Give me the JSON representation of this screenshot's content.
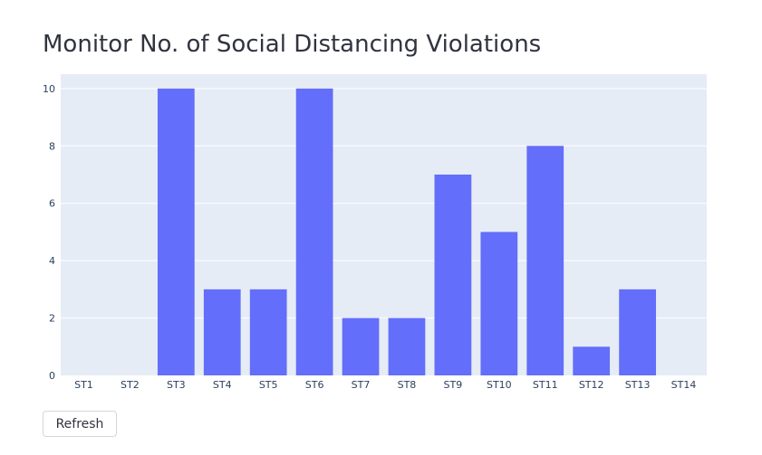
{
  "page": {
    "title": "Monitor No. of Social Distancing Violations",
    "refresh_label": "Refresh"
  },
  "chart_data": {
    "type": "bar",
    "title": "",
    "xlabel": "",
    "ylabel": "",
    "categories": [
      "ST1",
      "ST2",
      "ST3",
      "ST4",
      "ST5",
      "ST6",
      "ST7",
      "ST8",
      "ST9",
      "ST10",
      "ST11",
      "ST12",
      "ST13",
      "ST14"
    ],
    "values": [
      0,
      0,
      10,
      3,
      3,
      10,
      2,
      2,
      7,
      5,
      8,
      1,
      3,
      0
    ],
    "ylim": [
      0,
      10.5
    ],
    "yticks": [
      "0",
      "2",
      "4",
      "6",
      "8",
      "10"
    ],
    "grid": true,
    "legend": "none",
    "colors": {
      "bar": "#636efa",
      "plot_background": "#e5ecf6",
      "grid": "#ffffff"
    }
  }
}
